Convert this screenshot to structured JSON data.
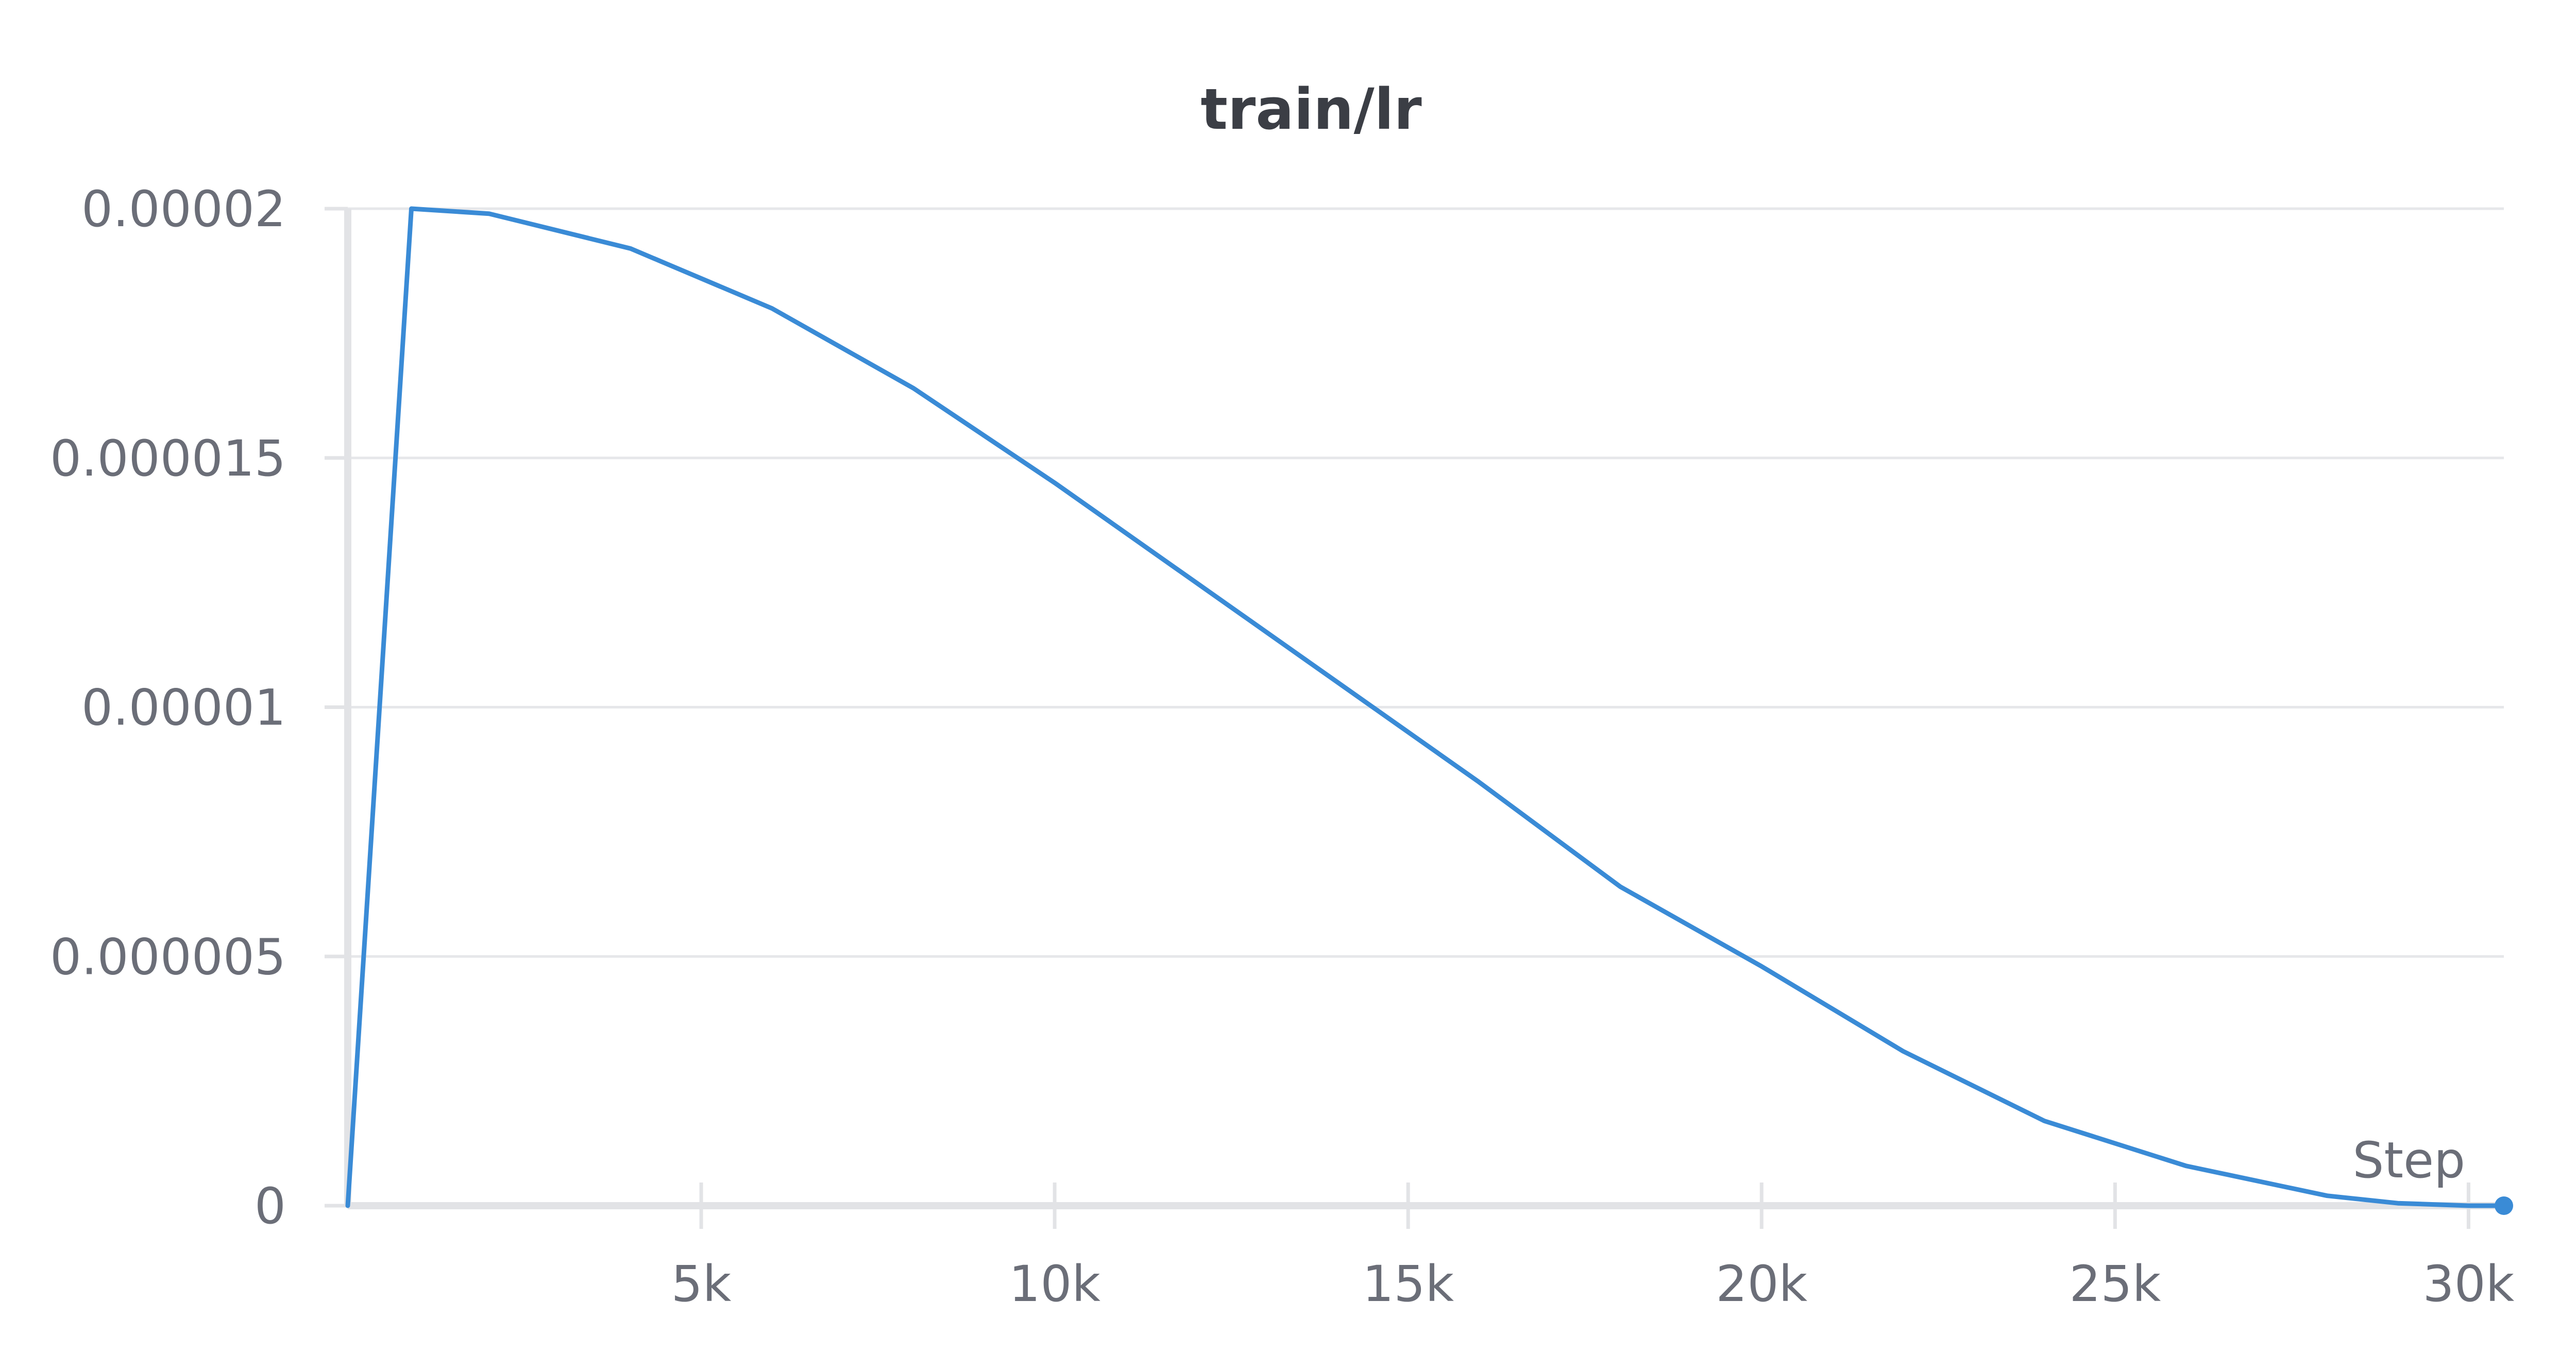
{
  "chart_data": {
    "type": "line",
    "title": "train/lr",
    "xlabel": "Step",
    "ylabel": "",
    "xlim": [
      0,
      30500
    ],
    "ylim": [
      0,
      2e-05
    ],
    "x_ticks": [
      {
        "value": 5000,
        "label": "5k"
      },
      {
        "value": 10000,
        "label": "10k"
      },
      {
        "value": 15000,
        "label": "15k"
      },
      {
        "value": 20000,
        "label": "20k"
      },
      {
        "value": 25000,
        "label": "25k"
      },
      {
        "value": 30000,
        "label": "30k"
      }
    ],
    "y_ticks": [
      {
        "value": 0,
        "label": "0"
      },
      {
        "value": 5e-06,
        "label": "0.000005"
      },
      {
        "value": 1e-05,
        "label": "0.00001"
      },
      {
        "value": 1.5e-05,
        "label": "0.000015"
      },
      {
        "value": 2e-05,
        "label": "0.00002"
      }
    ],
    "grid": true,
    "legend": "none",
    "series": [
      {
        "color": "#3a8bd6",
        "x": [
          0,
          900,
          2000,
          4000,
          6000,
          8000,
          10000,
          12000,
          14000,
          16000,
          18000,
          20000,
          22000,
          24000,
          26000,
          28000,
          29000,
          30000,
          30500
        ],
        "y": [
          0,
          2e-05,
          1.99e-05,
          1.92e-05,
          1.8e-05,
          1.64e-05,
          1.45e-05,
          1.25e-05,
          1.05e-05,
          8.5e-06,
          6.4e-06,
          4.8e-06,
          3.1e-06,
          1.7e-06,
          8e-07,
          2e-07,
          5e-08,
          0.0,
          0.0
        ]
      }
    ]
  }
}
